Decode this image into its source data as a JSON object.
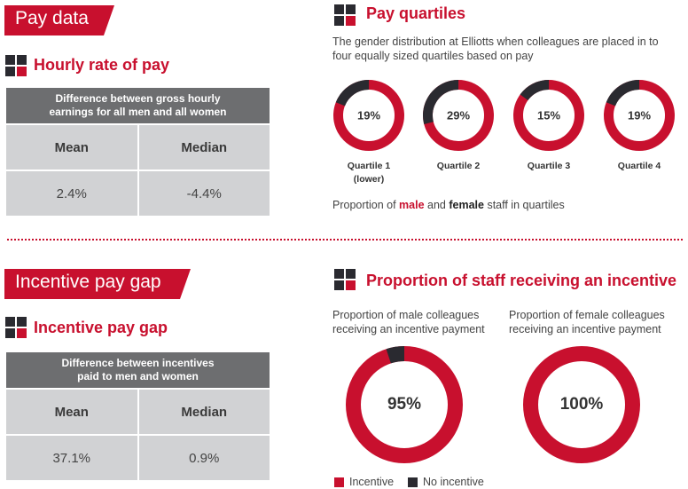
{
  "pay_data": {
    "banner": "Pay data",
    "hourly": {
      "heading": "Hourly rate of pay",
      "table_header_line1": "Difference between gross hourly",
      "table_header_line2": "earnings for all men and all women",
      "col_mean": "Mean",
      "col_median": "Median",
      "mean": "2.4%",
      "median": "-4.4%"
    }
  },
  "quartiles": {
    "heading": "Pay quartiles",
    "description_line1": "The gender distribution at Elliotts when colleagues are placed in to",
    "description_line2": "four equally sized quartiles based on pay",
    "items": [
      {
        "pct_label": "19%",
        "female_share": 0.19,
        "label_line1": "Quartile 1",
        "label_line2": "(lower)"
      },
      {
        "pct_label": "29%",
        "female_share": 0.29,
        "label_line1": "Quartile 2",
        "label_line2": ""
      },
      {
        "pct_label": "15%",
        "female_share": 0.15,
        "label_line1": "Quartile 3",
        "label_line2": ""
      },
      {
        "pct_label": "19%",
        "female_share": 0.19,
        "label_line1": "Quartile 4",
        "label_line2": ""
      }
    ],
    "caption_prefix": "Proportion of ",
    "caption_male": "male",
    "caption_and": " and ",
    "caption_female": "female",
    "caption_suffix": " staff in quartiles"
  },
  "incentive_gap": {
    "banner": "Incentive pay gap",
    "heading": "Incentive pay gap",
    "table_header_line1": "Difference between incentives",
    "table_header_line2": "paid to men and women",
    "col_mean": "Mean",
    "col_median": "Median",
    "mean": "37.1%",
    "median": "0.9%"
  },
  "incentive_proportion": {
    "heading": "Proportion of staff receiving an incentive",
    "male_caption_line1": "Proportion of male colleagues",
    "male_caption_line2": "receiving an incentive payment",
    "female_caption_line1": "Proportion of female colleagues",
    "female_caption_line2": "receiving an incentive payment",
    "male_pct_label": "95%",
    "male_share": 0.95,
    "female_pct_label": "100%",
    "female_share": 1.0,
    "legend_incentive": "Incentive",
    "legend_no_incentive": "No incentive"
  },
  "colors": {
    "red": "#c8102e",
    "dark": "#2a2a30",
    "grey_header": "#6d6e70",
    "grey_cell": "#d1d2d4"
  }
}
